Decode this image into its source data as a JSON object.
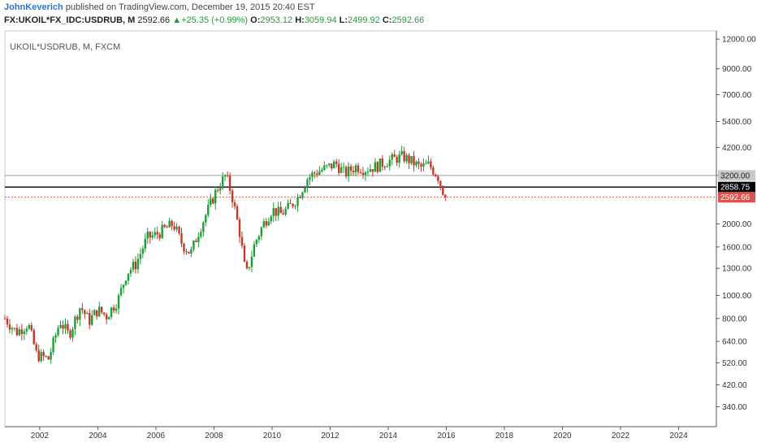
{
  "header": {
    "author": "JohnKeverich",
    "published": " published on TradingView.com, December 19, 2015 20:40 EST",
    "symbol": "FX:UKOIL*FX_IDC:USDRUB, M",
    "last": "2592.66",
    "change_arrow": "▲",
    "change": "+25.35 (+0.99%)",
    "o_label": "O:",
    "o_value": "2953.12",
    "h_label": "H:",
    "h_value": "3059.94",
    "l_label": "L:",
    "l_value": "2499.92",
    "c_label": "C:",
    "c_value": "2592.66"
  },
  "colors": {
    "up": "#1e9e35",
    "down": "#c0392b",
    "axis": "#555555",
    "line_resistance": "#b0b0b0",
    "line_support": "#000000",
    "line_price": "#d9534f"
  },
  "chart_data": {
    "type": "candlestick",
    "title": "UKOIL*USDRUB, M, FXCM",
    "y_scale": "log",
    "ylim": [
      280,
      13000
    ],
    "xlim": [
      2000.8,
      2025.3
    ],
    "y_ticks": [
      "12000.00",
      "9000.00",
      "7000.00",
      "5400.00",
      "4200.00",
      "3200.00",
      "2000.00",
      "1600.00",
      "1300.00",
      "1000.00",
      "800.00",
      "640.00",
      "520.00",
      "420.00",
      "340.00"
    ],
    "x_ticks": [
      "2002",
      "2004",
      "2006",
      "2008",
      "2010",
      "2012",
      "2014",
      "2016",
      "2018",
      "2020",
      "2022",
      "2024"
    ],
    "horizontal_lines": [
      {
        "value": 3200,
        "label": "3200.00",
        "style": "solid",
        "color": "#b0b0b0"
      },
      {
        "value": 2858.75,
        "label": "2858.75",
        "style": "solid",
        "color": "#000000"
      },
      {
        "value": 2592.66,
        "label": "2592.66",
        "style": "dotted",
        "color": "#d9534f"
      }
    ],
    "path": [
      [
        2000.8,
        800
      ],
      [
        2001.2,
        700
      ],
      [
        2001.6,
        760
      ],
      [
        2001.9,
        560
      ],
      [
        2002.3,
        540
      ],
      [
        2002.7,
        780
      ],
      [
        2003.0,
        680
      ],
      [
        2003.4,
        900
      ],
      [
        2003.7,
        780
      ],
      [
        2004.0,
        870
      ],
      [
        2004.3,
        820
      ],
      [
        2004.7,
        960
      ],
      [
        2005.0,
        1250
      ],
      [
        2005.3,
        1350
      ],
      [
        2005.7,
        1750
      ],
      [
        2006.0,
        1800
      ],
      [
        2006.3,
        1900
      ],
      [
        2006.6,
        2000
      ],
      [
        2006.9,
        1650
      ],
      [
        2007.2,
        1500
      ],
      [
        2007.5,
        1900
      ],
      [
        2007.8,
        2300
      ],
      [
        2008.1,
        2800
      ],
      [
        2008.4,
        3200
      ],
      [
        2008.6,
        2700
      ],
      [
        2008.9,
        1800
      ],
      [
        2009.1,
        1200
      ],
      [
        2009.4,
        1650
      ],
      [
        2009.7,
        2000
      ],
      [
        2010.0,
        2300
      ],
      [
        2010.3,
        2200
      ],
      [
        2010.6,
        2350
      ],
      [
        2010.9,
        2600
      ],
      [
        2011.2,
        3100
      ],
      [
        2011.5,
        3300
      ],
      [
        2011.9,
        3450
      ],
      [
        2012.2,
        3600
      ],
      [
        2012.5,
        3250
      ],
      [
        2012.9,
        3500
      ],
      [
        2013.2,
        3400
      ],
      [
        2013.6,
        3500
      ],
      [
        2013.9,
        3650
      ],
      [
        2014.2,
        3750
      ],
      [
        2014.5,
        3850
      ],
      [
        2014.9,
        3600
      ],
      [
        2015.1,
        3450
      ],
      [
        2015.4,
        3550
      ],
      [
        2015.7,
        3200
      ],
      [
        2015.96,
        2592.66
      ]
    ]
  }
}
